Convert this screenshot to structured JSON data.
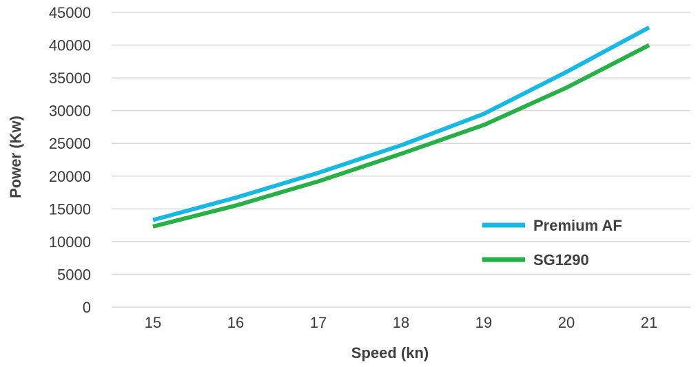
{
  "chart_data": {
    "type": "line",
    "title": "",
    "xlabel": "Speed (kn)",
    "ylabel": "Power (Kw)",
    "x": [
      15,
      16,
      17,
      18,
      19,
      20,
      21
    ],
    "ylim": [
      0,
      45000
    ],
    "yticks": [
      0,
      5000,
      10000,
      15000,
      20000,
      25000,
      30000,
      35000,
      40000,
      45000
    ],
    "grid": true,
    "legend_position": "bottom-right",
    "series": [
      {
        "name": "Premium AF",
        "color": "#1ab7e3",
        "values": [
          13300,
          16700,
          20500,
          24700,
          29500,
          35900,
          42700
        ]
      },
      {
        "name": "SG1290",
        "color": "#2aae4a",
        "values": [
          12300,
          15500,
          19200,
          23400,
          27800,
          33500,
          40000
        ]
      }
    ]
  }
}
